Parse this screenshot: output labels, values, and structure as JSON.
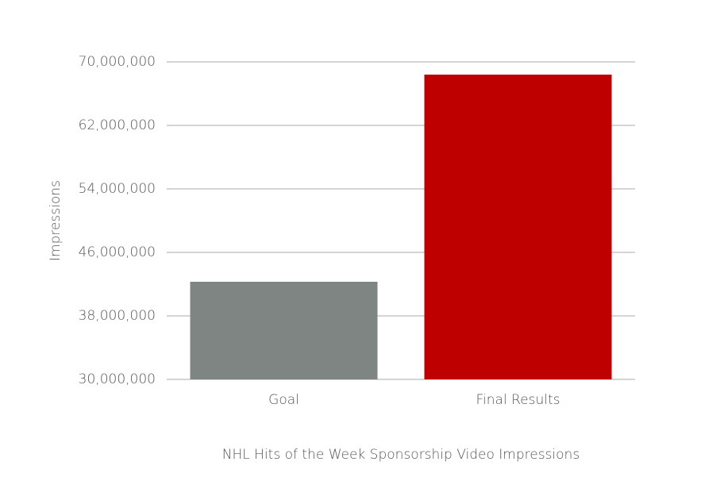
{
  "chart_data": {
    "type": "bar",
    "x_label": "NHL Hits of the Week Sponsorship Video Impressions",
    "y_label": "Impressions",
    "categories": [
      "Goal",
      "Final Results"
    ],
    "values": [
      42300000,
      68400000
    ],
    "colors": [
      "#7f8583",
      "#bf0000"
    ],
    "ylim": [
      30000000,
      70000000
    ],
    "yticks": [
      {
        "value": 30000000,
        "label": "30,000,000"
      },
      {
        "value": 38000000,
        "label": "38,000,000"
      },
      {
        "value": 46000000,
        "label": "46,000,000"
      },
      {
        "value": 54000000,
        "label": "54,000,000"
      },
      {
        "value": 62000000,
        "label": "62,000,000"
      },
      {
        "value": 70000000,
        "label": "70,000,000"
      }
    ],
    "grid": true
  }
}
